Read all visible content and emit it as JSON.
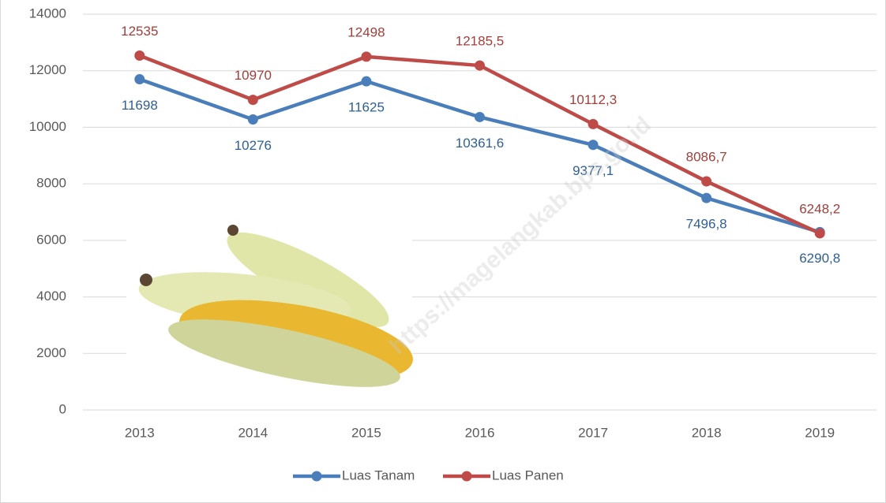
{
  "chart_data": {
    "type": "line",
    "categories": [
      "2013",
      "2014",
      "2015",
      "2016",
      "2017",
      "2018",
      "2019"
    ],
    "series": [
      {
        "name": "Luas Tanam",
        "color": "#4a7ebb",
        "values": [
          11698,
          10276,
          11625,
          10361.6,
          9377.1,
          7496.8,
          6290.8
        ],
        "value_labels": [
          "11698",
          "10276",
          "11625",
          "10361,6",
          "9377,1",
          "7496,8",
          "6290,8"
        ]
      },
      {
        "name": "Luas Panen",
        "color": "#be4b48",
        "values": [
          12535,
          10970,
          12498,
          12185.5,
          10112.3,
          8086.7,
          6248.2
        ],
        "value_labels": [
          "12535",
          "10970",
          "12498",
          "12185,5",
          "10112,3",
          "8086,7",
          "6248,2"
        ]
      }
    ],
    "ylim": [
      0,
      14000
    ],
    "yticks": [
      0,
      2000,
      4000,
      6000,
      8000,
      10000,
      12000,
      14000
    ],
    "grid": true,
    "legend": "bottom",
    "watermark": "https://magelangkab.bps.go.id"
  }
}
